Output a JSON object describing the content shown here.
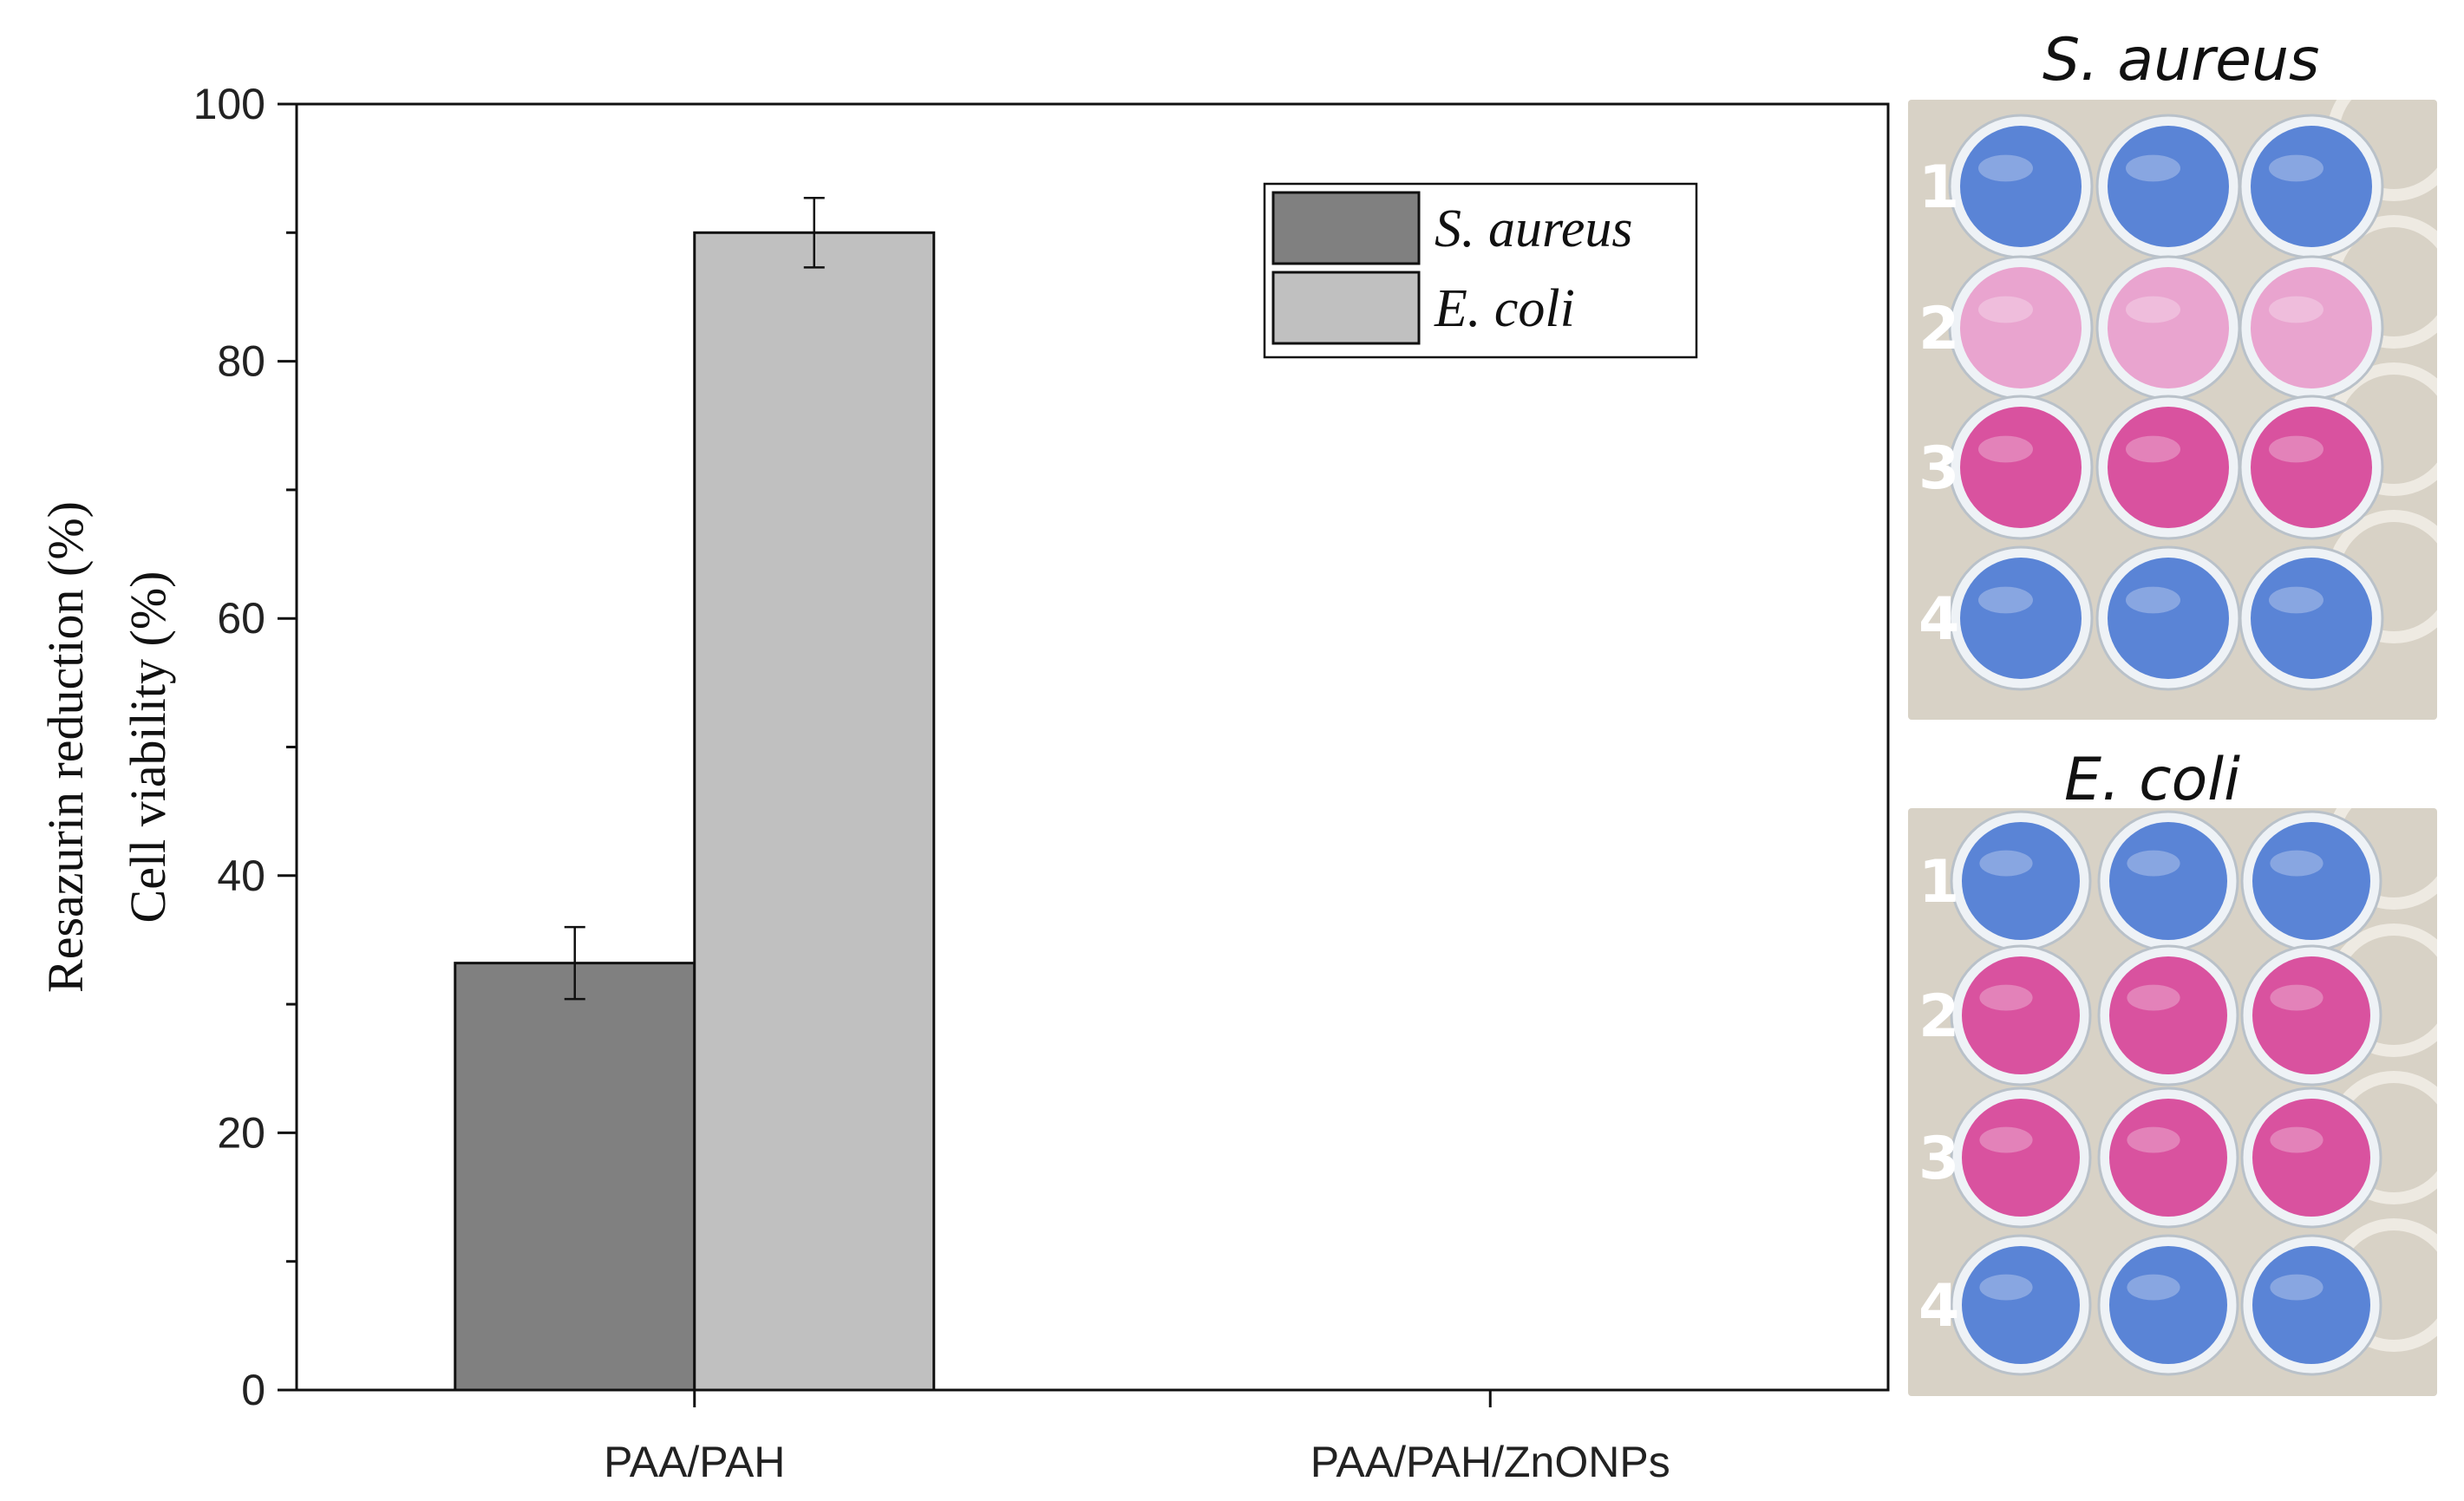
{
  "chart_data": {
    "type": "bar",
    "categories": [
      "PAA/PAH",
      "PAA/PAH/ZnONPs"
    ],
    "series": [
      {
        "name": "S. aureus",
        "values": [
          33.2,
          0
        ],
        "errors": [
          2.8,
          0
        ],
        "color": "#808080"
      },
      {
        "name": "E. coli",
        "values": [
          90.0,
          0
        ],
        "errors": [
          2.7,
          0
        ],
        "color": "#c0c0c0"
      }
    ],
    "ylabel": [
      "Resazurin reduction (%)",
      "Cell viability (%)"
    ],
    "ylim": [
      0,
      100
    ],
    "yticks": [
      0,
      20,
      40,
      60,
      80,
      100
    ],
    "legend": "top-right",
    "grid": false
  },
  "photos": {
    "s_aureus": {
      "title": "S. aureus",
      "row_labels": [
        "1",
        "2",
        "3",
        "4"
      ],
      "row_colors": [
        "blue",
        "pink",
        "magenta",
        "blue"
      ]
    },
    "e_coli": {
      "title": "E. coli",
      "row_labels": [
        "1",
        "2",
        "3",
        "4"
      ],
      "row_colors": [
        "blue",
        "magenta",
        "magenta",
        "blue"
      ]
    }
  },
  "colors": {
    "blue": "#5a84d6",
    "pink": "#e9a4cf",
    "magenta": "#d9529f",
    "plate_bg": "#d8d2c6"
  }
}
